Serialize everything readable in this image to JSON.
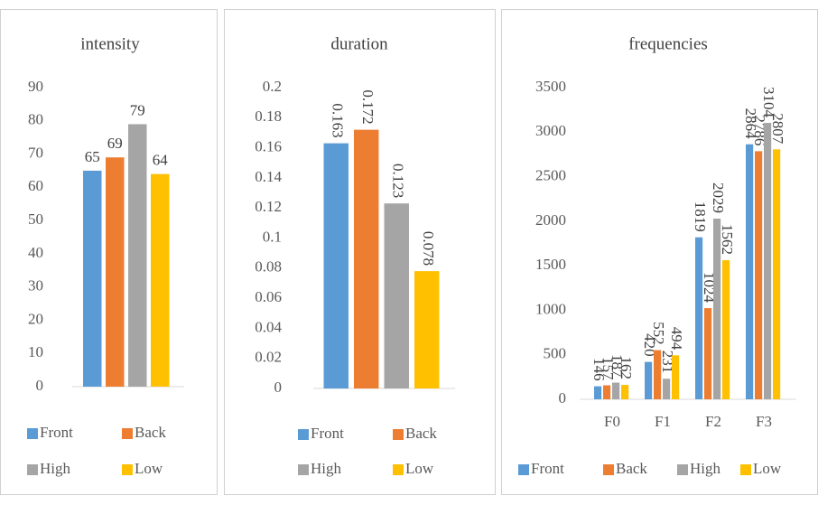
{
  "chart_data": [
    {
      "type": "bar",
      "title": "intensity",
      "categories": [
        null
      ],
      "series": [
        {
          "name": "Front",
          "color": "#5b9bd5",
          "values": [
            65
          ]
        },
        {
          "name": "Back",
          "color": "#ed7d31",
          "values": [
            69
          ]
        },
        {
          "name": "High",
          "color": "#a5a5a5",
          "values": [
            79
          ]
        },
        {
          "name": "Low",
          "color": "#ffc000",
          "values": [
            64
          ]
        }
      ],
      "ylim": [
        0,
        90
      ],
      "yticks": [
        0,
        10,
        20,
        30,
        40,
        50,
        60,
        70,
        80,
        90
      ],
      "grid": false,
      "legend": "bottom"
    },
    {
      "type": "bar",
      "title": "duration",
      "categories": [
        null
      ],
      "series": [
        {
          "name": "Front",
          "color": "#5b9bd5",
          "values": [
            0.163
          ]
        },
        {
          "name": "Back",
          "color": "#ed7d31",
          "values": [
            0.172
          ]
        },
        {
          "name": "High",
          "color": "#a5a5a5",
          "values": [
            0.123
          ]
        },
        {
          "name": "Low",
          "color": "#ffc000",
          "values": [
            0.078
          ]
        }
      ],
      "ylim": [
        0,
        0.2
      ],
      "yticks": [
        0,
        0.02,
        0.04,
        0.06,
        0.08,
        0.1,
        0.12,
        0.14,
        0.16,
        0.18,
        0.2
      ],
      "grid": false,
      "legend": "bottom"
    },
    {
      "type": "bar",
      "title": "frequencies",
      "categories": [
        "F0",
        "F1",
        "F2",
        "F3"
      ],
      "series": [
        {
          "name": "Front",
          "color": "#5b9bd5",
          "values": [
            146,
            420,
            1819,
            2864
          ]
        },
        {
          "name": "Back",
          "color": "#ed7d31",
          "values": [
            157,
            552,
            1024,
            2786
          ]
        },
        {
          "name": "High",
          "color": "#a5a5a5",
          "values": [
            187,
            231,
            2029,
            3104
          ]
        },
        {
          "name": "Low",
          "color": "#ffc000",
          "values": [
            162,
            494,
            1562,
            2807
          ]
        }
      ],
      "ylim": [
        0,
        3500
      ],
      "yticks": [
        0,
        500,
        1000,
        1500,
        2000,
        2500,
        3000,
        3500
      ],
      "grid": false,
      "legend": "bottom"
    }
  ]
}
